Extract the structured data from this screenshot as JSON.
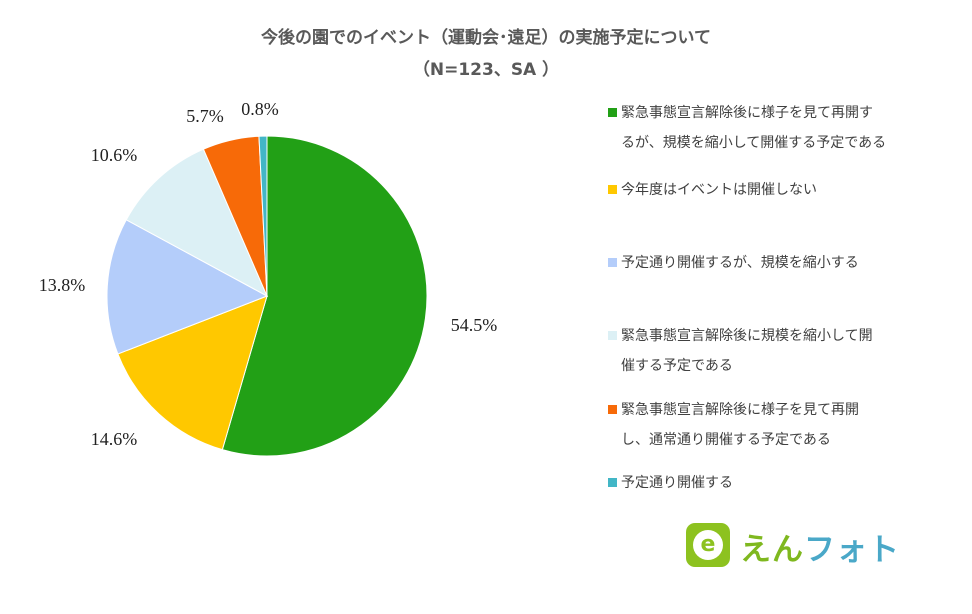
{
  "chart_data": {
    "type": "pie",
    "title": "今後の園でのイベント（運動会･遠足）の実施予定について",
    "subtitle": "（N=123、SA ）",
    "slices": [
      {
        "label": "緊急事態宣言解除後に様子を見て再開するが、規模を縮小して開催する予定である",
        "value": 54.5,
        "display": "54.5%",
        "color": "#22a016"
      },
      {
        "label": "今年度はイベントは開催しない",
        "value": 14.6,
        "display": "14.6%",
        "color": "#ffc800"
      },
      {
        "label": "予定通り開催するが、規模を縮小する",
        "value": 13.8,
        "display": "13.8%",
        "color": "#b4cdfa"
      },
      {
        "label": "緊急事態宣言解除後に規模を縮小して開催する予定である",
        "value": 10.6,
        "display": "10.6%",
        "color": "#dcf0f5"
      },
      {
        "label": "緊急事態宣言解除後に様子を見て再開し、通常通り開催する予定である",
        "value": 5.7,
        "display": "5.7%",
        "color": "#f76a08"
      },
      {
        "label": "予定通り開催する",
        "value": 0.8,
        "display": "0.8%",
        "color": "#42b6c6"
      }
    ],
    "legend_position": "right"
  },
  "legend": {
    "lines": [
      [
        "緊急事態宣言解除後に様子を見て再開す",
        "るが、規模を縮小して開催する予定である"
      ],
      [
        "今年度はイベントは開催しない"
      ],
      [
        "予定通り開催するが、規模を縮小する"
      ],
      [
        "緊急事態宣言解除後に規模を縮小して開",
        "催する予定である"
      ],
      [
        "緊急事態宣言解除後に様子を見て再開",
        "し、通常通り開催する予定である"
      ],
      [
        "予定通り開催する"
      ]
    ]
  },
  "logo": {
    "badge_letter": "e",
    "text_part1": "えん",
    "text_part2": "フォト",
    "colors": {
      "green": "#8dc21f",
      "blue": "#4aa8c8"
    }
  }
}
